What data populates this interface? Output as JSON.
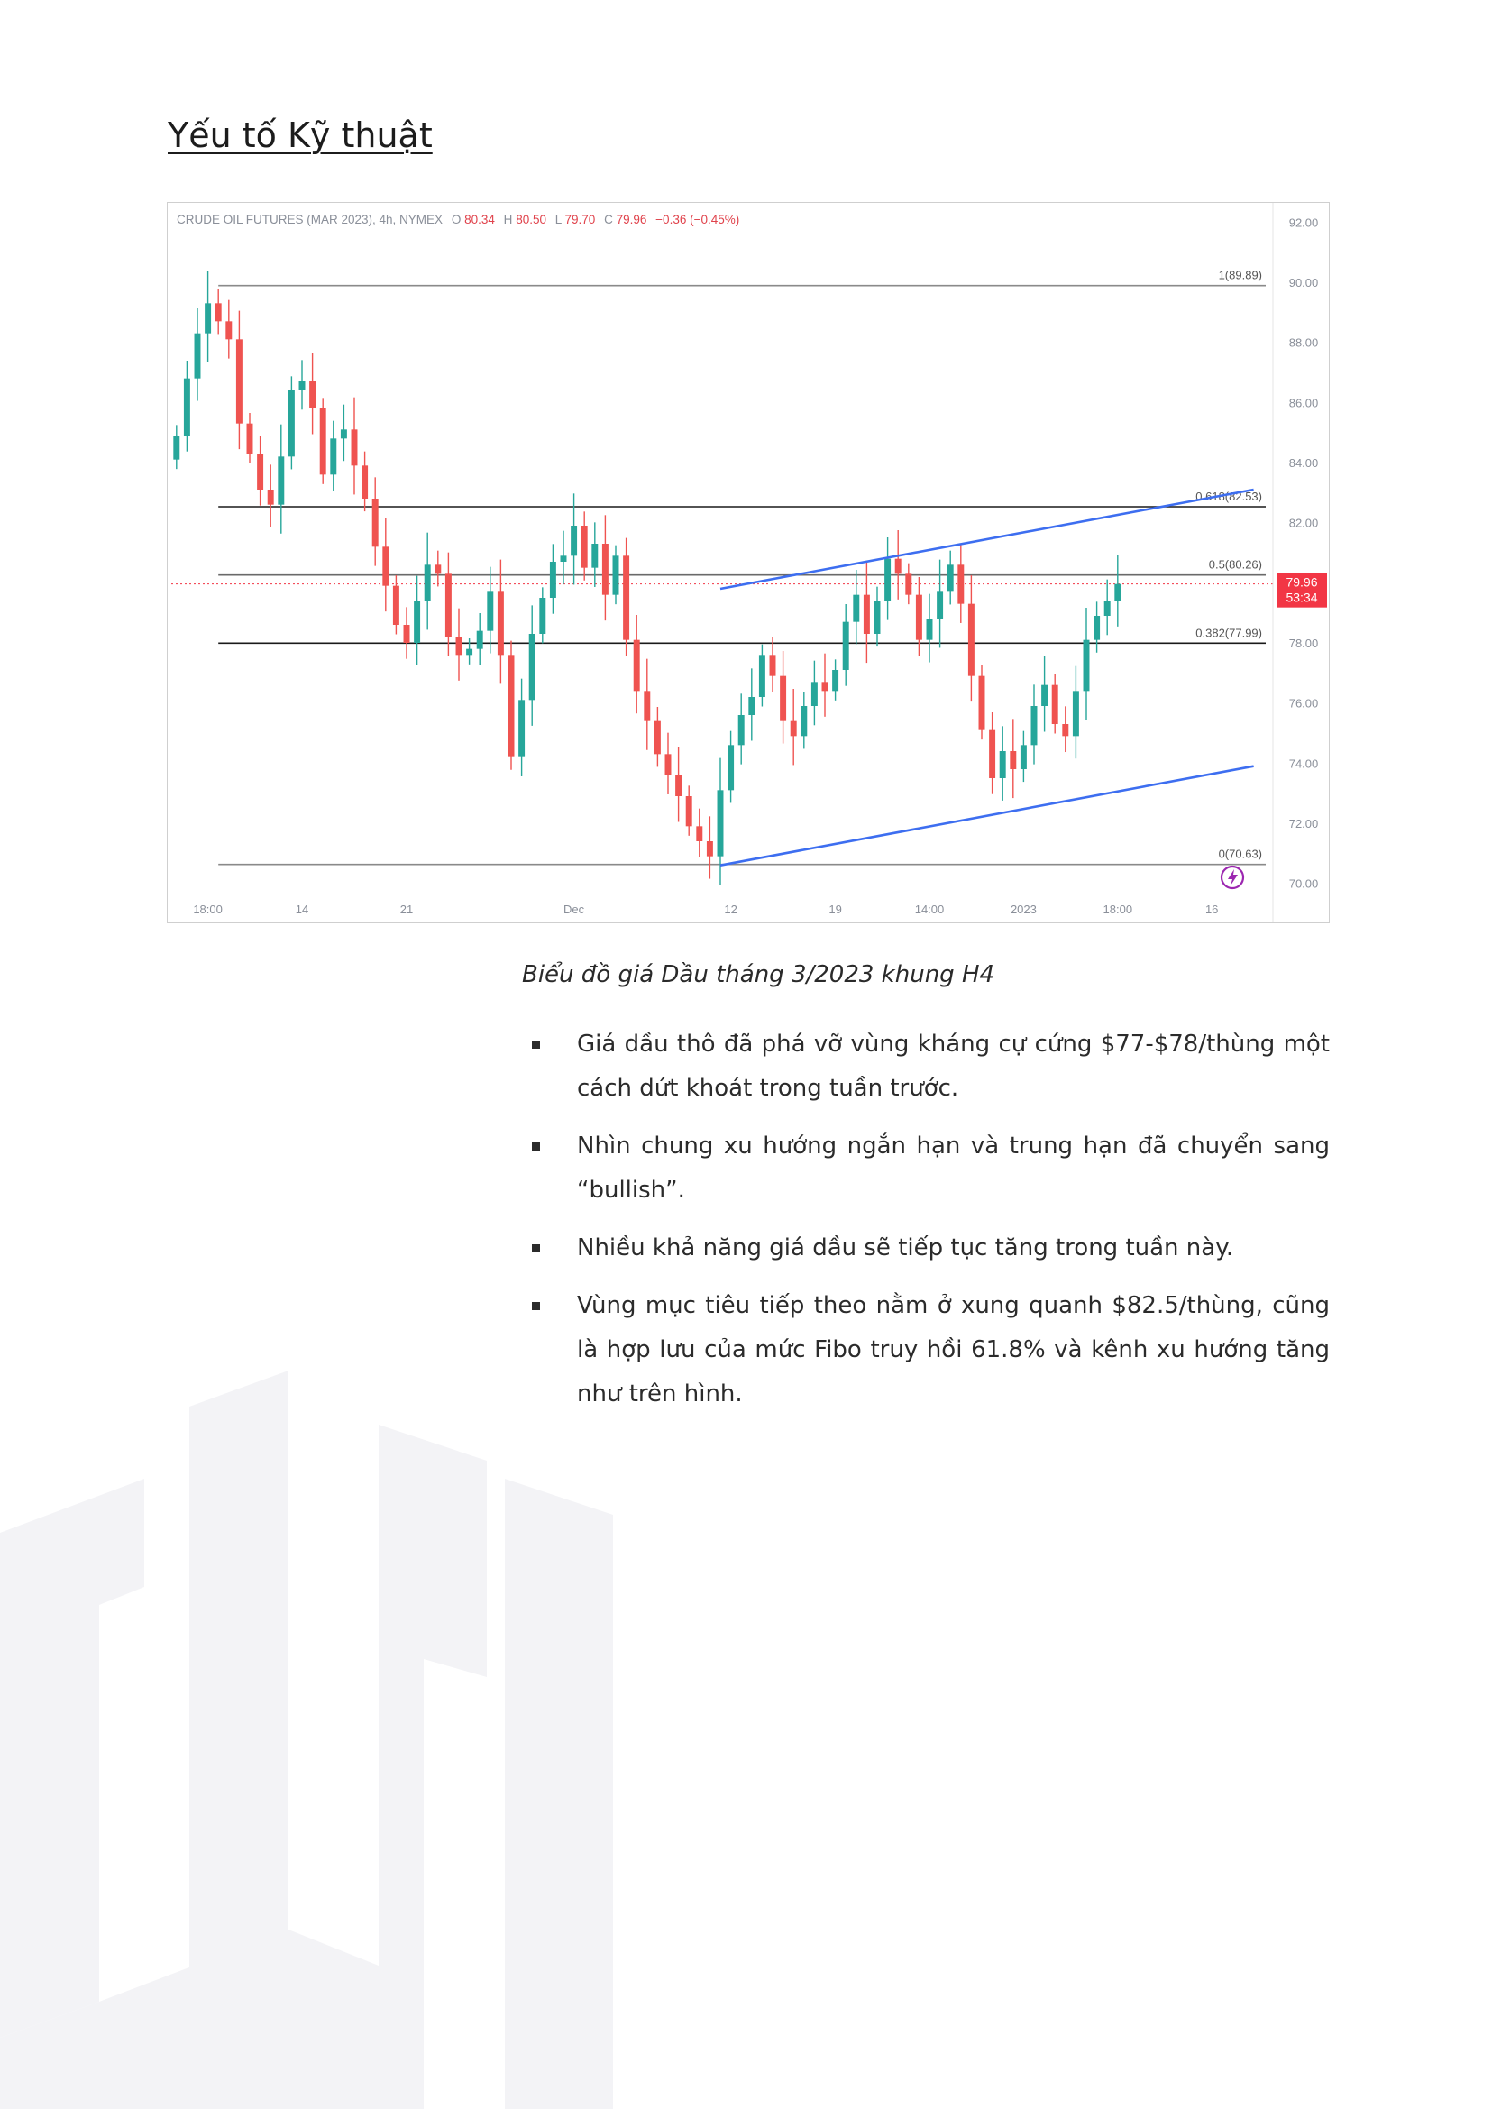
{
  "heading": "Yếu tố Kỹ thuật",
  "caption": "Biểu đồ giá Dầu tháng 3/2023 khung H4",
  "bullets": [
    "Giá dầu thô đã phá vỡ vùng kháng cự cứng $77-$78/thùng một cách dứt khoát trong tuần trước.",
    "Nhìn chung xu hướng ngắn hạn và trung hạn đã chuyển sang “bullish”.",
    "Nhiều khả năng giá dầu sẽ tiếp tục tăng trong tuần này.",
    "Vùng mục tiêu tiếp theo nằm ở xung quanh $82.5/thùng, cũng là hợp lưu của mức Fibo truy hồi 61.8% và kênh xu hướng tăng như trên hình."
  ],
  "chart_data": {
    "type": "candlestick",
    "header": {
      "symbol": "CRUDE OIL FUTURES (MAR 2023), 4h, NYMEX",
      "o_label": "O",
      "o_value": "80.34",
      "h_label": "H",
      "h_value": "80.50",
      "l_label": "L",
      "l_value": "79.70",
      "c_label": "C",
      "c_value": "79.96",
      "change": "−0.36 (−0.45%)"
    },
    "ylim": [
      69.6,
      92.4
    ],
    "y_ticks": [
      "92.00",
      "90.00",
      "88.00",
      "86.00",
      "84.00",
      "82.00",
      "80.00",
      "78.00",
      "76.00",
      "74.00",
      "72.00",
      "70.00"
    ],
    "x_ticks": [
      {
        "label": "18:00",
        "i": 3
      },
      {
        "label": "14",
        "i": 12
      },
      {
        "label": "21",
        "i": 22
      },
      {
        "label": "Dec",
        "i": 38
      },
      {
        "label": "12",
        "i": 53
      },
      {
        "label": "19",
        "i": 63
      },
      {
        "label": "14:00",
        "i": 72
      },
      {
        "label": "2023",
        "i": 81
      },
      {
        "label": "18:00",
        "i": 90
      },
      {
        "label": "16",
        "i": 99
      }
    ],
    "fib_levels": [
      {
        "label": "1(89.89)",
        "value": 89.89,
        "color": "#8a8a8a"
      },
      {
        "label": "0.618(82.53)",
        "value": 82.53,
        "color": "#1a1a1a"
      },
      {
        "label": "0.5(80.26)",
        "value": 80.26,
        "color": "#6a6a6a"
      },
      {
        "label": "0.382(77.99)",
        "value": 77.99,
        "color": "#1a1a1a"
      },
      {
        "label": "0(70.63)",
        "value": 70.63,
        "color": "#8a8a8a"
      }
    ],
    "channel": [
      {
        "start": [
          52,
          79.8
        ],
        "end": [
          103,
          83.1
        ]
      },
      {
        "start": [
          52,
          70.6
        ],
        "end": [
          103,
          73.9
        ]
      }
    ],
    "last_price": "79.96",
    "countdown": "53:34",
    "closes": [
      84.9,
      86.8,
      88.3,
      89.3,
      88.7,
      88.1,
      85.3,
      84.3,
      83.1,
      82.6,
      84.2,
      86.4,
      86.7,
      85.8,
      83.6,
      84.8,
      85.1,
      83.9,
      82.8,
      81.2,
      79.9,
      78.6,
      78.0,
      79.4,
      80.6,
      80.3,
      78.2,
      77.6,
      77.8,
      78.4,
      79.7,
      77.6,
      74.2,
      76.1,
      78.3,
      79.5,
      80.7,
      80.9,
      81.9,
      80.5,
      81.3,
      79.6,
      80.9,
      78.1,
      76.4,
      75.4,
      74.3,
      73.6,
      72.9,
      71.9,
      71.4,
      70.9,
      73.1,
      74.6,
      75.6,
      76.2,
      77.6,
      76.9,
      75.4,
      74.9,
      75.9,
      76.7,
      76.4,
      77.1,
      78.7,
      79.6,
      78.3,
      79.4,
      80.8,
      80.3,
      79.6,
      78.1,
      78.8,
      79.7,
      80.6,
      79.3,
      76.9,
      75.1,
      73.5,
      74.4,
      73.8,
      74.6,
      75.9,
      76.6,
      75.3,
      74.9,
      76.4,
      78.1,
      78.9,
      79.4,
      79.96
    ]
  }
}
